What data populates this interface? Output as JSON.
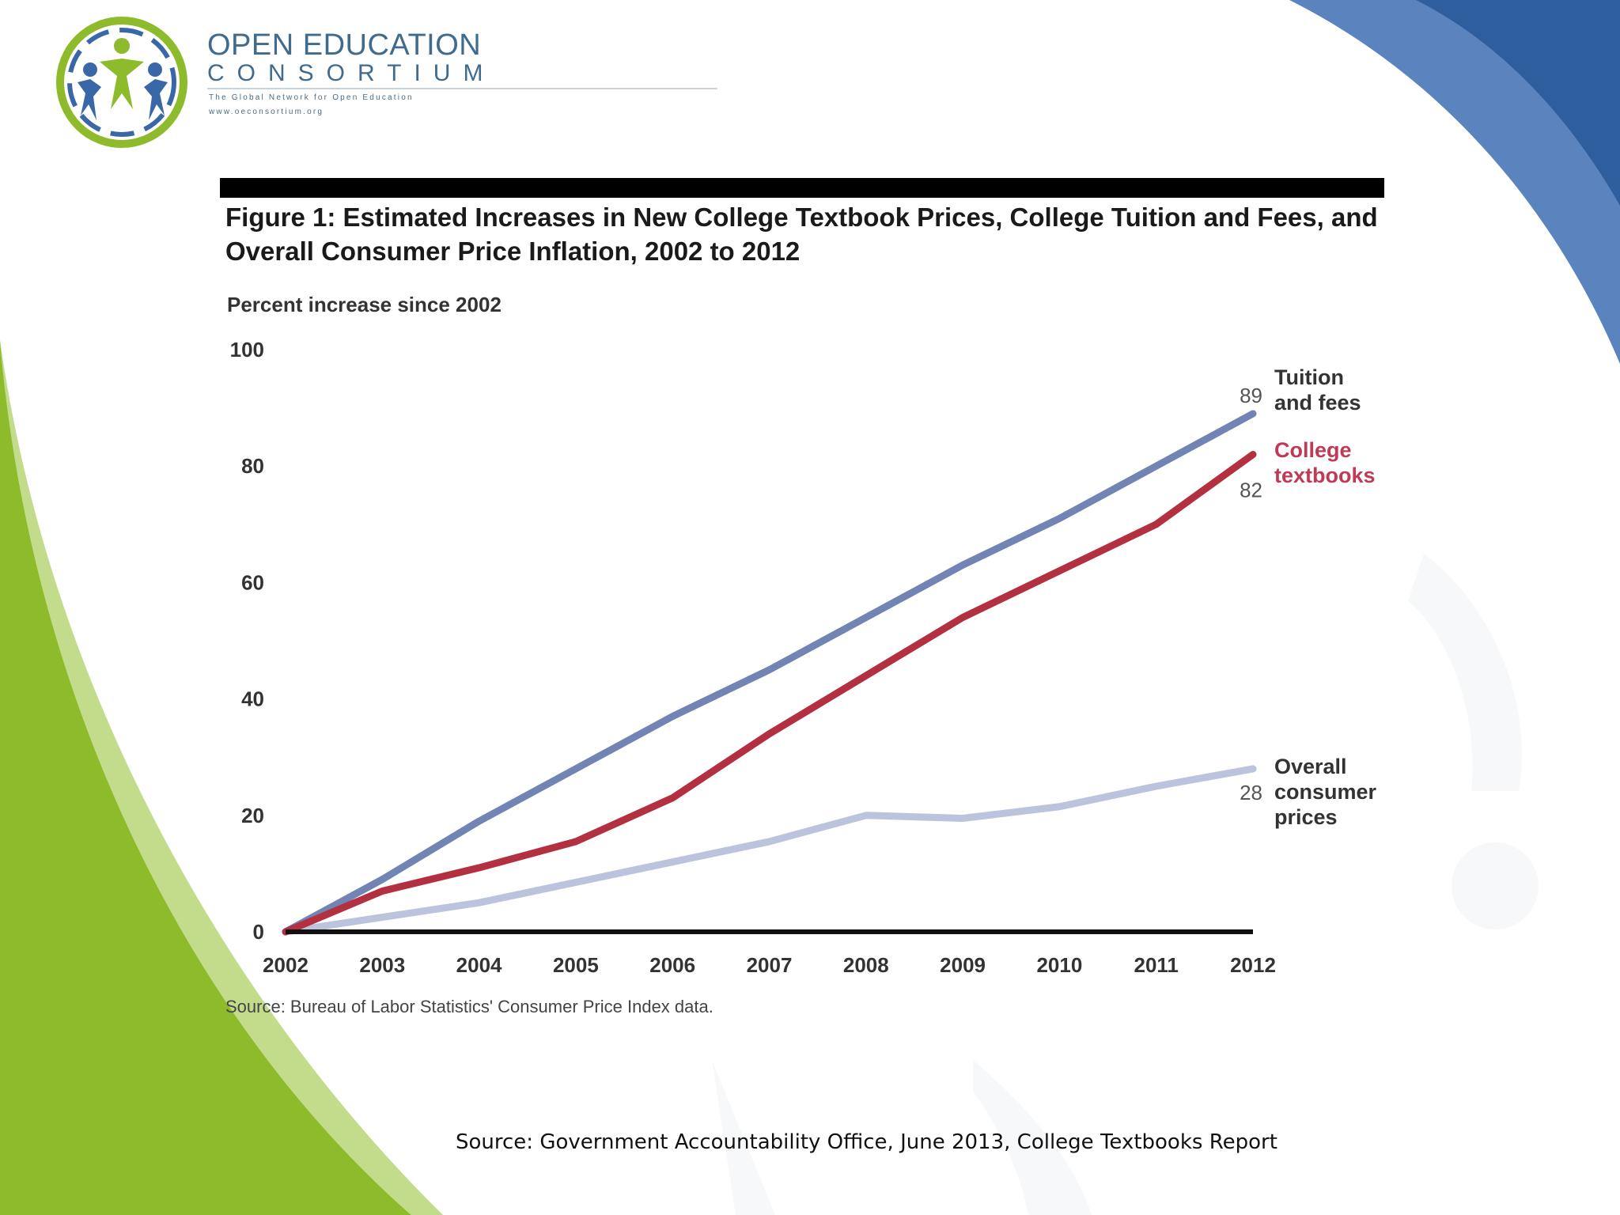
{
  "branding": {
    "name_line1": "OPEN EDUCATION",
    "name_line2": "CONSORTIUM",
    "tagline": "The Global Network for Open Education",
    "url": "www.oeconsortium.org"
  },
  "colors": {
    "tuition": "#7284b4",
    "textbooks": "#b23040",
    "consumer": "#bcc3dc",
    "accent_blue": "#3866a8",
    "accent_green": "#8cbc2c"
  },
  "chart_data": {
    "type": "line",
    "title": "Figure 1: Estimated Increases in New College Textbook Prices, College Tuition and Fees, and Overall Consumer Price Inflation, 2002 to 2012",
    "ylabel": "Percent increase since 2002",
    "xlabel": "",
    "ylim": [
      0,
      100
    ],
    "yticks": [
      "0",
      "20",
      "40",
      "60",
      "80",
      "100"
    ],
    "x": [
      "2002",
      "2003",
      "2004",
      "2005",
      "2006",
      "2007",
      "2008",
      "2009",
      "2010",
      "2011",
      "2012"
    ],
    "series": [
      {
        "name": "Tuition and fees",
        "label_lines": [
          "Tuition",
          "and fees"
        ],
        "end_label": "89",
        "color": "#7284b4",
        "values": [
          0,
          9,
          19,
          28,
          37,
          45,
          54,
          63,
          71,
          80,
          89
        ]
      },
      {
        "name": "College textbooks",
        "label_lines": [
          "College",
          "textbooks"
        ],
        "end_label": "82",
        "color": "#b23040",
        "values": [
          0,
          7,
          11,
          15.5,
          23,
          34,
          44,
          54,
          62,
          70,
          82
        ]
      },
      {
        "name": "Overall consumer prices",
        "label_lines": [
          "Overall",
          "consumer",
          "prices"
        ],
        "end_label": "28",
        "color": "#bcc3dc",
        "values": [
          0,
          2.5,
          5,
          8.5,
          12,
          15.5,
          20,
          19.5,
          21.5,
          25,
          28
        ]
      }
    ],
    "grid": false,
    "legend": "right, inline labels",
    "source_note": "Source: Bureau of Labor Statistics' Consumer Price Index data."
  },
  "footer": {
    "source": "Source: Government Accountability Office, June 2013, College Textbooks Report"
  }
}
